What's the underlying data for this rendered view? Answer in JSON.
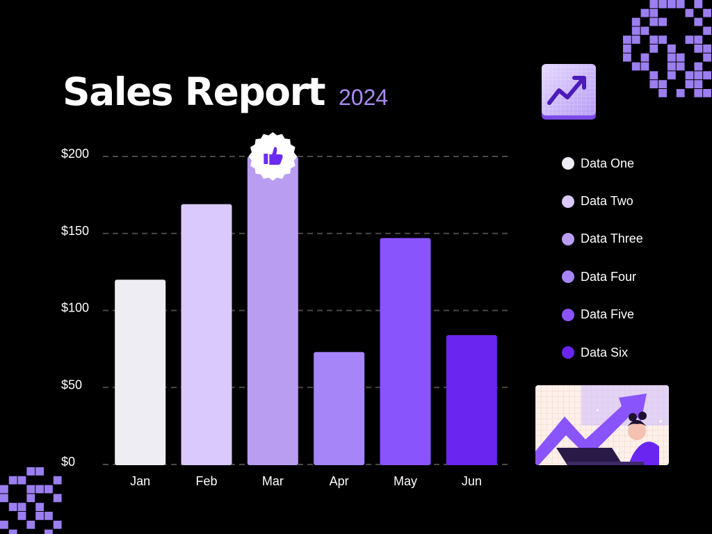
{
  "header": {
    "title": "Sales Report",
    "year": "2024"
  },
  "colors": {
    "background": "#000000",
    "gridline": "#4a4a4a",
    "accent": "#a98bf0",
    "badge_icon": "#6b2cf0",
    "pixel_deco": "#9b7ef0"
  },
  "decorations": {
    "trend_card_icon": "trending-up-arrow-icon",
    "badge_icon": "thumbs-up-icon",
    "illustration": "woman-with-laptop-growth-arrow-illustration"
  },
  "chart_data": {
    "type": "bar",
    "title": "Sales Report",
    "subtitle": "2024",
    "xlabel": "",
    "ylabel": "",
    "categories": [
      "Jan",
      "Feb",
      "Mar",
      "Apr",
      "May",
      "Jun"
    ],
    "values": [
      120,
      169,
      200,
      73,
      147,
      84
    ],
    "bar_colors": [
      "#eeedf3",
      "#d9c9fc",
      "#b99df0",
      "#a585f7",
      "#8a54fd",
      "#6a26f0"
    ],
    "ylim": [
      0,
      200
    ],
    "yticks": [
      0,
      50,
      100,
      150,
      200
    ],
    "ytick_labels": [
      "$0",
      "$50",
      "$100",
      "$150",
      "$200"
    ],
    "grid": true,
    "legend": {
      "placement": "right",
      "entries": [
        {
          "label": "Data One",
          "color": "#eeedf3"
        },
        {
          "label": "Data Two",
          "color": "#d9c9fc"
        },
        {
          "label": "Data Three",
          "color": "#b99df0"
        },
        {
          "label": "Data Four",
          "color": "#a585f7"
        },
        {
          "label": "Data Five",
          "color": "#8a54fd"
        },
        {
          "label": "Data Six",
          "color": "#6a26f0"
        }
      ]
    }
  }
}
